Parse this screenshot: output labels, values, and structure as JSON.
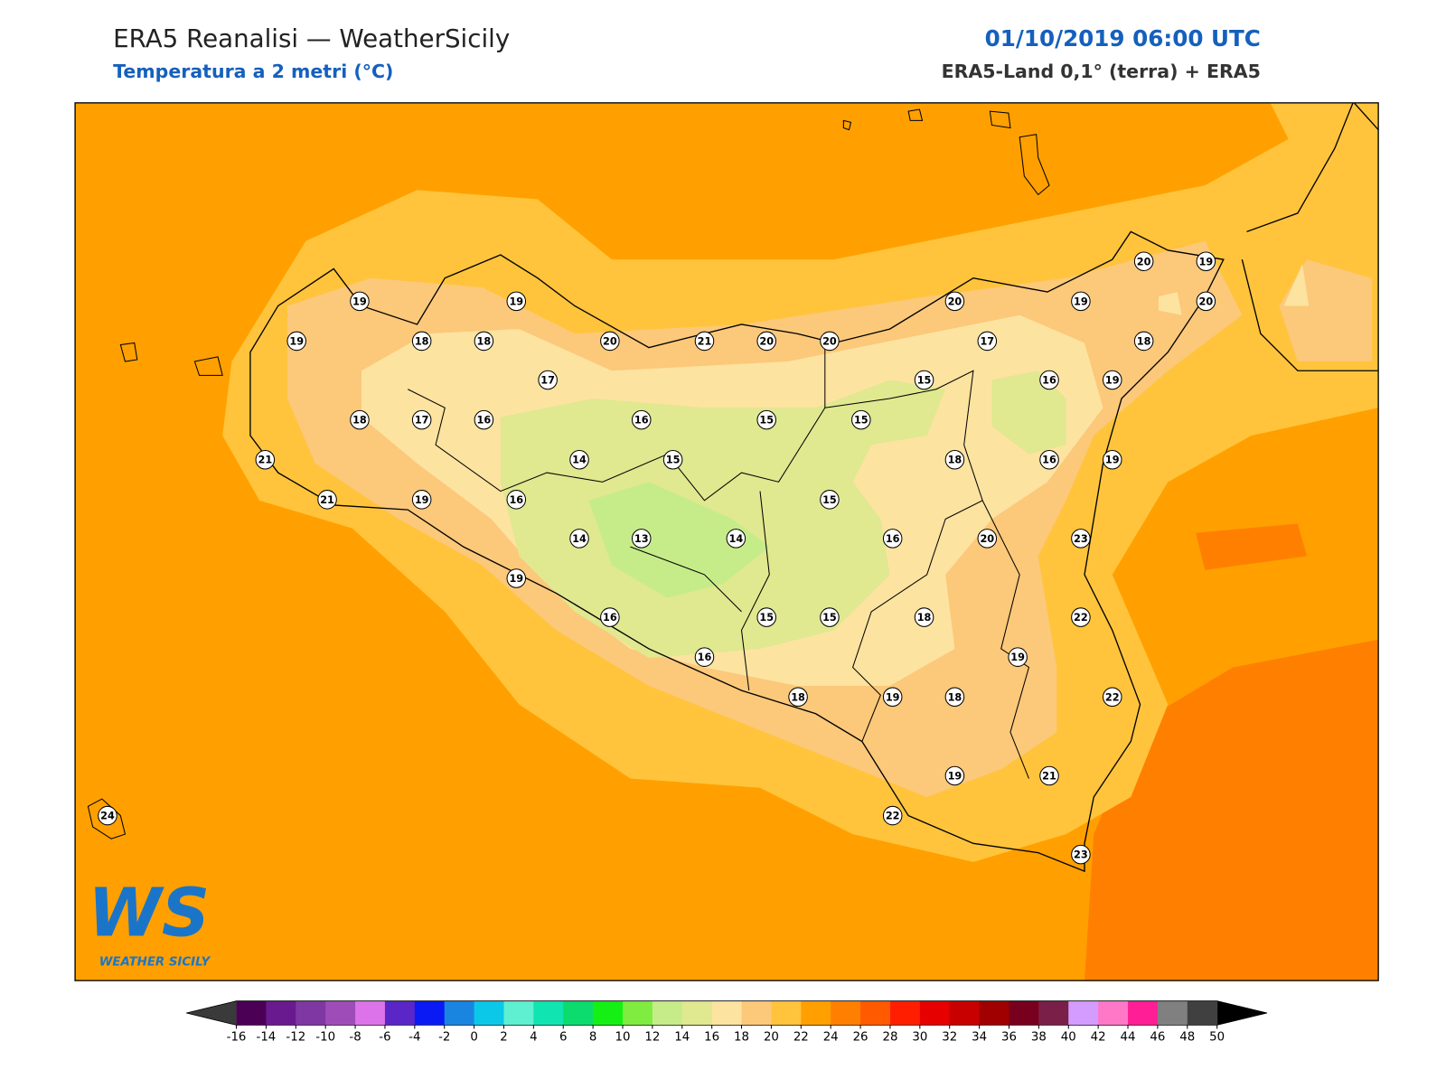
{
  "header": {
    "title": "ERA5 Reanalisi — WeatherSicily",
    "subtitle": "Temperatura a 2 metri (°C)",
    "date": "01/10/2019 06:00 UTC",
    "source": "ERA5-Land 0,1° (terra) + ERA5"
  },
  "station_values": [
    19,
    19,
    19,
    18,
    18,
    20,
    21,
    20,
    20,
    20,
    19,
    20,
    19,
    20,
    17,
    18,
    17,
    15,
    16,
    19,
    18,
    17,
    16,
    16,
    15,
    15,
    21,
    14,
    15,
    18,
    16,
    19,
    21,
    19,
    16,
    15,
    14,
    13,
    14,
    16,
    20,
    23,
    19,
    16,
    15,
    15,
    18,
    22,
    19,
    16,
    18,
    19,
    18,
    22,
    19,
    21,
    22,
    23,
    24
  ],
  "colorbar": {
    "ticks": [
      -16,
      -14,
      -12,
      -10,
      -8,
      -6,
      -4,
      -2,
      0,
      2,
      4,
      6,
      8,
      10,
      12,
      14,
      16,
      18,
      20,
      22,
      24,
      26,
      28,
      30,
      32,
      34,
      36,
      38,
      40,
      42,
      44,
      46,
      48,
      50
    ],
    "colors": [
      "#4b0055",
      "#6a1a8f",
      "#7f38a3",
      "#9e4db8",
      "#dd73ea",
      "#5a26c8",
      "#0a1af5",
      "#1a85e0",
      "#0cc8e8",
      "#5ef0d0",
      "#10e4b0",
      "#0cdc6e",
      "#14f014",
      "#80ec40",
      "#c6ec8a",
      "#e0e890",
      "#fde3a0",
      "#fcc87a",
      "#ffc43c",
      "#ffa000",
      "#ff8000",
      "#ff5a00",
      "#ff1e00",
      "#e60000",
      "#c80000",
      "#a00000",
      "#78001e",
      "#7a2048",
      "#d49cff",
      "#ff78c8",
      "#ff1e96",
      "#808080",
      "#404040"
    ],
    "extend_colors": [
      "#3a3a3a",
      "#000000"
    ]
  },
  "logo": {
    "text": "WS",
    "caption": "WEATHER SICILY"
  }
}
